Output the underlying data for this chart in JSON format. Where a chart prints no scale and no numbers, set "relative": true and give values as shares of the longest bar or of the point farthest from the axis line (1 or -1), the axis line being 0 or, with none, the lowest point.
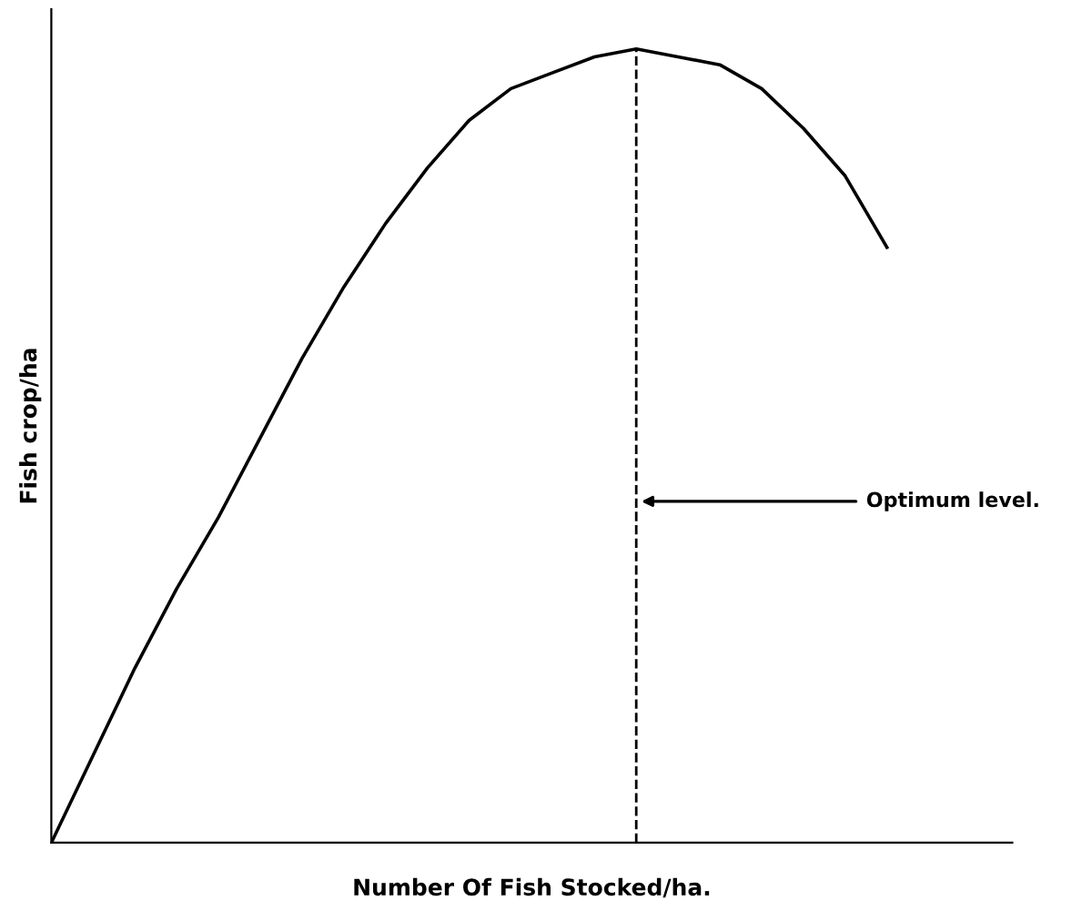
{
  "chart_data": {
    "type": "line",
    "relative": true,
    "xlabel": "Number Of Fish Stocked/ha.",
    "ylabel": "Fish crop/ha",
    "categories": [
      null,
      null,
      null,
      null,
      null,
      null,
      null,
      null,
      null,
      null,
      null,
      null,
      null,
      null,
      null,
      null,
      null,
      null,
      null,
      null,
      null,
      null,
      null,
      null
    ],
    "series": [
      {
        "color": "#000000",
        "values": [
          0,
          0.11,
          0.22,
          0.32,
          0.41,
          0.51,
          0.61,
          0.7,
          0.78,
          0.85,
          0.91,
          0.95,
          0.97,
          0.99,
          1.0,
          0.99,
          0.98,
          0.95,
          0.9,
          0.84,
          0.75,
          null,
          null,
          null
        ]
      }
    ],
    "annotations": [
      "Optimum level."
    ],
    "legend": false,
    "marker": "none",
    "line_style": "solid",
    "tick_labels": false
  }
}
